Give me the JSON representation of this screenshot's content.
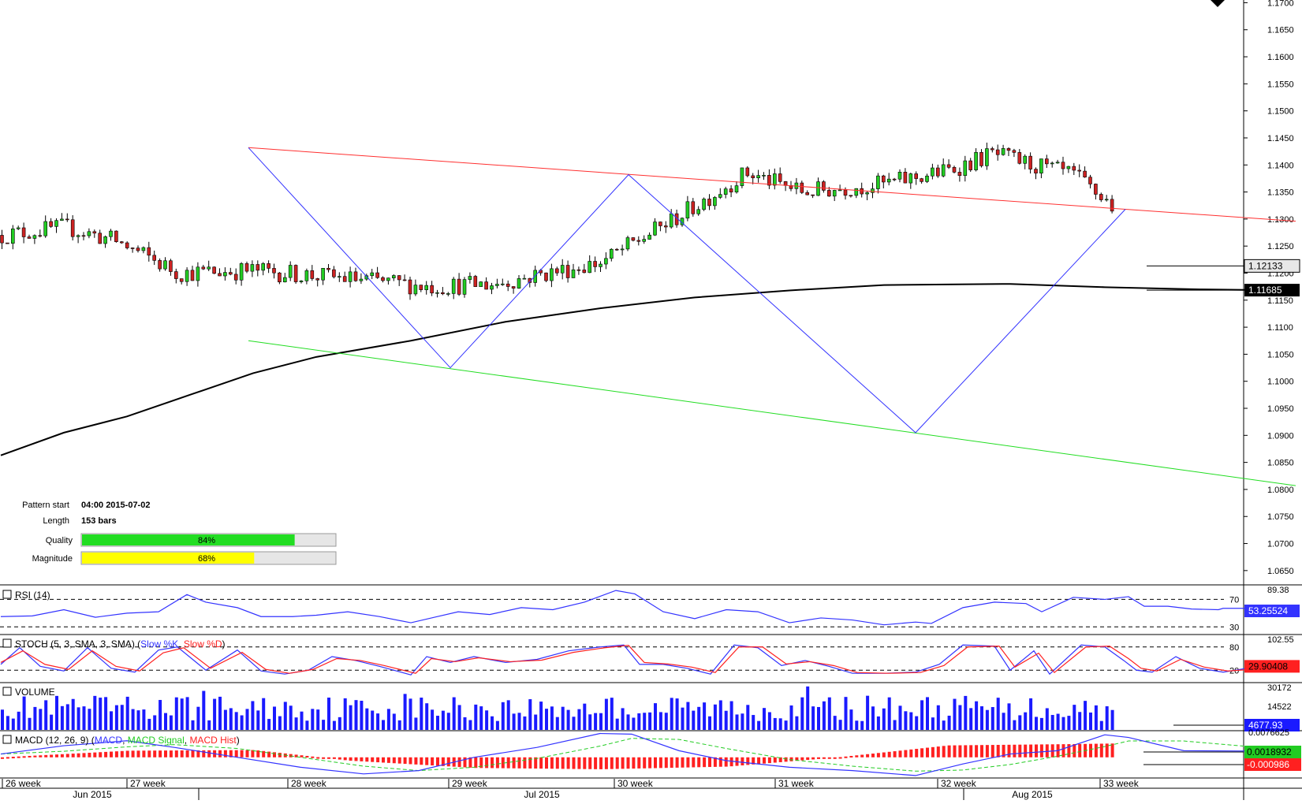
{
  "window": {
    "collapse_arrow_icon": "triangle-down-icon"
  },
  "chart_data": [
    {
      "type": "candlestick",
      "name": "price",
      "y_ticks": [
        "1.1700",
        "1.1650",
        "1.1600",
        "1.1550",
        "1.1500",
        "1.1450",
        "1.1400",
        "1.1350",
        "1.1300",
        "1.1250",
        "1.1200",
        "1.1150",
        "1.1100",
        "1.1050",
        "1.1000",
        "1.0950",
        "1.0900",
        "1.0850",
        "1.0800",
        "1.0750",
        "1.0700",
        "1.0650"
      ],
      "ylim": [
        1.0625,
        1.1705
      ],
      "bars_shown": 205,
      "price_labels": {
        "last": "1.12133",
        "ma": "1.11685"
      },
      "ma_points": [
        [
          0,
          1.0863
        ],
        [
          40,
          1.0905
        ],
        [
          80,
          1.0935
        ],
        [
          120,
          1.0975
        ],
        [
          160,
          1.1015
        ],
        [
          200,
          1.1045
        ],
        [
          260,
          1.1075
        ],
        [
          320,
          1.111
        ],
        [
          380,
          1.1135
        ],
        [
          440,
          1.1155
        ],
        [
          500,
          1.1168
        ],
        [
          560,
          1.1178
        ],
        [
          640,
          1.118
        ],
        [
          700,
          1.1174
        ],
        [
          760,
          1.117
        ],
        [
          822,
          1.1168
        ]
      ],
      "lines": {
        "upper_resistance": {
          "color": "#ff3030",
          "points": [
            [
              157,
              1.1432
            ],
            [
              821,
              1.1296
            ]
          ]
        },
        "lower_support": {
          "color": "#22dd22",
          "points": [
            [
              157,
              1.1075
            ],
            [
              821,
              1.0807
            ]
          ]
        },
        "zigzag": {
          "color": "#3333ff",
          "points": [
            [
              157,
              1.1432
            ],
            [
              285,
              1.1025
            ],
            [
              398,
              1.1382
            ],
            [
              580,
              1.0905
            ],
            [
              713,
              1.1318
            ]
          ]
        }
      },
      "pattern_info": {
        "start_label": "Pattern start",
        "start_value": "04:00 2015-07-02",
        "length_label": "Length",
        "length_value": "153 bars",
        "quality_label": "Quality",
        "quality_value": 84,
        "quality_text": "84%",
        "magnitude_label": "Magnitude",
        "magnitude_value": 68,
        "magnitude_text": "68%"
      }
    },
    {
      "type": "line",
      "name": "rsi",
      "title": "RSI (14)",
      "ylim": [
        20,
        90
      ],
      "levels": [
        70,
        30
      ],
      "level_labels": [
        "70",
        "30"
      ],
      "top_label": "89.38",
      "last_value": "53.25524",
      "color": "#3333ff",
      "points": [
        [
          0,
          45
        ],
        [
          20,
          46
        ],
        [
          40,
          55
        ],
        [
          60,
          44
        ],
        [
          80,
          50
        ],
        [
          100,
          52
        ],
        [
          118,
          77
        ],
        [
          130,
          66
        ],
        [
          150,
          58
        ],
        [
          165,
          45
        ],
        [
          185,
          45
        ],
        [
          200,
          47
        ],
        [
          220,
          52
        ],
        [
          240,
          45
        ],
        [
          260,
          36
        ],
        [
          275,
          44
        ],
        [
          290,
          52
        ],
        [
          310,
          48
        ],
        [
          330,
          58
        ],
        [
          350,
          55
        ],
        [
          370,
          66
        ],
        [
          390,
          83
        ],
        [
          402,
          78
        ],
        [
          420,
          52
        ],
        [
          440,
          42
        ],
        [
          460,
          55
        ],
        [
          480,
          52
        ],
        [
          500,
          36
        ],
        [
          520,
          43
        ],
        [
          540,
          40
        ],
        [
          560,
          33
        ],
        [
          580,
          37
        ],
        [
          590,
          35
        ],
        [
          610,
          58
        ],
        [
          630,
          66
        ],
        [
          650,
          64
        ],
        [
          660,
          52
        ],
        [
          680,
          73
        ],
        [
          700,
          70
        ],
        [
          715,
          74
        ],
        [
          725,
          60
        ],
        [
          740,
          60
        ],
        [
          755,
          56
        ],
        [
          772,
          55
        ],
        [
          775,
          57
        ],
        [
          790,
          57
        ],
        [
          822,
          57
        ]
      ]
    },
    {
      "type": "line",
      "name": "stochastic",
      "title": "STOCH (5, 3, SMA, 3, SMA)",
      "series": [
        {
          "name": "Slow %K",
          "color": "#3333ff",
          "points": [
            [
              0,
              35
            ],
            [
              12,
              78
            ],
            [
              25,
              30
            ],
            [
              40,
              18
            ],
            [
              55,
              78
            ],
            [
              70,
              25
            ],
            [
              85,
              15
            ],
            [
              100,
              72
            ],
            [
              112,
              80
            ],
            [
              130,
              20
            ],
            [
              150,
              72
            ],
            [
              165,
              18
            ],
            [
              180,
              10
            ],
            [
              195,
              20
            ],
            [
              210,
              55
            ],
            [
              225,
              45
            ],
            [
              240,
              30
            ],
            [
              260,
              8
            ],
            [
              270,
              55
            ],
            [
              285,
              40
            ],
            [
              300,
              55
            ],
            [
              320,
              40
            ],
            [
              340,
              48
            ],
            [
              360,
              70
            ],
            [
              380,
              80
            ],
            [
              395,
              85
            ],
            [
              405,
              35
            ],
            [
              420,
              35
            ],
            [
              435,
              25
            ],
            [
              450,
              10
            ],
            [
              465,
              85
            ],
            [
              480,
              78
            ],
            [
              495,
              32
            ],
            [
              510,
              45
            ],
            [
              525,
              30
            ],
            [
              540,
              12
            ],
            [
              560,
              12
            ],
            [
              580,
              15
            ],
            [
              595,
              35
            ],
            [
              610,
              85
            ],
            [
              630,
              82
            ],
            [
              640,
              20
            ],
            [
              655,
              70
            ],
            [
              665,
              10
            ],
            [
              685,
              85
            ],
            [
              700,
              80
            ],
            [
              712,
              45
            ],
            [
              720,
              20
            ],
            [
              730,
              15
            ],
            [
              745,
              55
            ],
            [
              760,
              25
            ],
            [
              775,
              15
            ],
            [
              790,
              25
            ],
            [
              822,
              30
            ]
          ]
        },
        {
          "name": "Slow %D",
          "color": "#ff2020",
          "points": [
            [
              0,
              40
            ],
            [
              14,
              70
            ],
            [
              28,
              35
            ],
            [
              43,
              22
            ],
            [
              58,
              70
            ],
            [
              73,
              30
            ],
            [
              88,
              18
            ],
            [
              103,
              65
            ],
            [
              116,
              78
            ],
            [
              133,
              25
            ],
            [
              153,
              66
            ],
            [
              168,
              22
            ],
            [
              183,
              12
            ],
            [
              198,
              22
            ],
            [
              213,
              50
            ],
            [
              228,
              45
            ],
            [
              243,
              32
            ],
            [
              263,
              12
            ],
            [
              273,
              50
            ],
            [
              288,
              42
            ],
            [
              303,
              52
            ],
            [
              323,
              42
            ],
            [
              343,
              46
            ],
            [
              363,
              66
            ],
            [
              383,
              78
            ],
            [
              398,
              84
            ],
            [
              408,
              40
            ],
            [
              423,
              36
            ],
            [
              438,
              28
            ],
            [
              453,
              14
            ],
            [
              468,
              80
            ],
            [
              483,
              80
            ],
            [
              498,
              36
            ],
            [
              513,
              42
            ],
            [
              528,
              32
            ],
            [
              543,
              14
            ],
            [
              563,
              12
            ],
            [
              583,
              14
            ],
            [
              598,
              32
            ],
            [
              613,
              80
            ],
            [
              633,
              82
            ],
            [
              643,
              28
            ],
            [
              658,
              64
            ],
            [
              668,
              14
            ],
            [
              688,
              80
            ],
            [
              703,
              82
            ],
            [
              715,
              50
            ],
            [
              723,
              25
            ],
            [
              733,
              18
            ],
            [
              748,
              48
            ],
            [
              763,
              28
            ],
            [
              778,
              18
            ],
            [
              793,
              22
            ],
            [
              822,
              28
            ]
          ]
        }
      ],
      "ylim": [
        -10,
        110
      ],
      "levels": [
        80,
        20
      ],
      "level_labels": [
        "80",
        "20"
      ],
      "top_label": "102.55",
      "last_value": "29.90408"
    },
    {
      "type": "bar",
      "name": "volume",
      "title": "VOLUME",
      "top_label": "30172",
      "mid_label": "14522",
      "last_value": "4677.93",
      "ylim": [
        0,
        30172
      ],
      "color": "#1a1aff"
    },
    {
      "type": "line",
      "name": "macd",
      "title": "MACD (12, 26, 9)",
      "series_labels": [
        {
          "name": "MACD",
          "color": "#3333ff"
        },
        {
          "name": "MACD Signal",
          "color": "#22cc22"
        },
        {
          "name": "MACD Hist",
          "color": "#ff2020"
        }
      ],
      "top_label": "0.0076625",
      "value_labels": [
        "0.0018932",
        "-0.000986"
      ],
      "ylim": [
        -0.006,
        0.0078
      ]
    }
  ],
  "x_axis": {
    "weeks": [
      {
        "label": "26 week",
        "bar": 1
      },
      {
        "label": "27 week",
        "bar": 80
      },
      {
        "label": "28 week",
        "bar": 182
      },
      {
        "label": "29 week",
        "bar": 284
      },
      {
        "label": "30 week",
        "bar": 389
      },
      {
        "label": "31 week",
        "bar": 491
      },
      {
        "label": "32 week",
        "bar": 594
      },
      {
        "label": "33 week",
        "bar": 697
      }
    ],
    "months": [
      {
        "label": "Jun 2015",
        "bar": 58
      },
      {
        "label": "Jul 2015",
        "bar": 343
      },
      {
        "label": "Aug 2015",
        "bar": 654
      }
    ]
  }
}
